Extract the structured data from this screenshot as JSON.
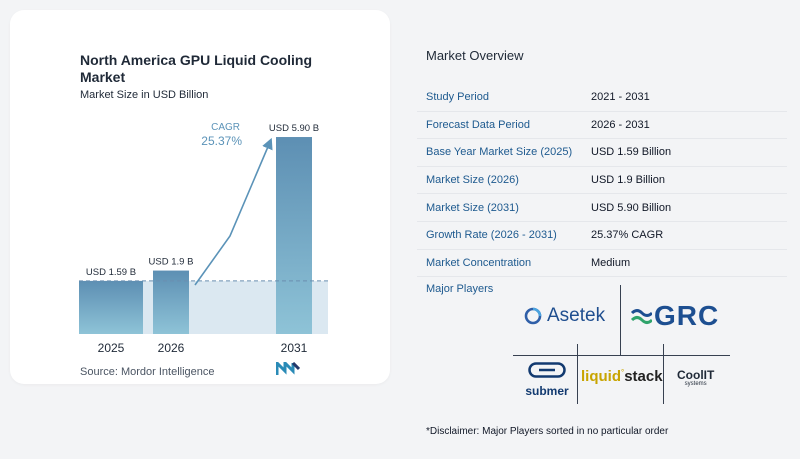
{
  "chart_data": {
    "type": "bar",
    "title": "North America GPU Liquid Cooling Market",
    "subtitle": "Market Size in USD Billion",
    "categories": [
      "2025",
      "2026",
      "2031"
    ],
    "values": [
      1.59,
      1.9,
      5.9
    ],
    "data_labels": [
      "USD 1.59 B",
      "USD 1.9 B",
      "USD 5.90 B"
    ],
    "cagr_label": "CAGR",
    "cagr_value": "25.37%",
    "ylim": [
      0,
      6.5
    ],
    "grid": false,
    "colors": {
      "bar_top": "#5d8fb3",
      "bar_bottom": "#8ec3d7",
      "shade": "#dbe8f1",
      "arrow": "#5b93b8",
      "text": "#1f2937"
    }
  },
  "source": "Source:  Mordor Intelligence",
  "overview": {
    "title": "Market Overview",
    "rows": [
      {
        "label": "Study Period",
        "value": "2021 - 2031"
      },
      {
        "label": "Forecast Data Period",
        "value": "2026 - 2031"
      },
      {
        "label": "Base Year Market Size (2025)",
        "value": "USD 1.59 Billion"
      },
      {
        "label": "Market Size (2026)",
        "value": "USD 1.9 Billion"
      },
      {
        "label": "Market Size (2031)",
        "value": "USD 5.90 Billion"
      },
      {
        "label": "Growth Rate (2026 - 2031)",
        "value": "25.37% CAGR"
      },
      {
        "label": "Market Concentration",
        "value": "Medium"
      }
    ]
  },
  "players": {
    "title": "Major Players",
    "logos": {
      "asetek": "Asetek",
      "grc": "GRC",
      "submer": "submer",
      "liquidstack_a": "liquid",
      "liquidstack_b": "stack",
      "coolit": "CoolIT",
      "coolit_sub": "systems"
    }
  },
  "disclaimer": "*Disclaimer: Major Players sorted in no particular order"
}
